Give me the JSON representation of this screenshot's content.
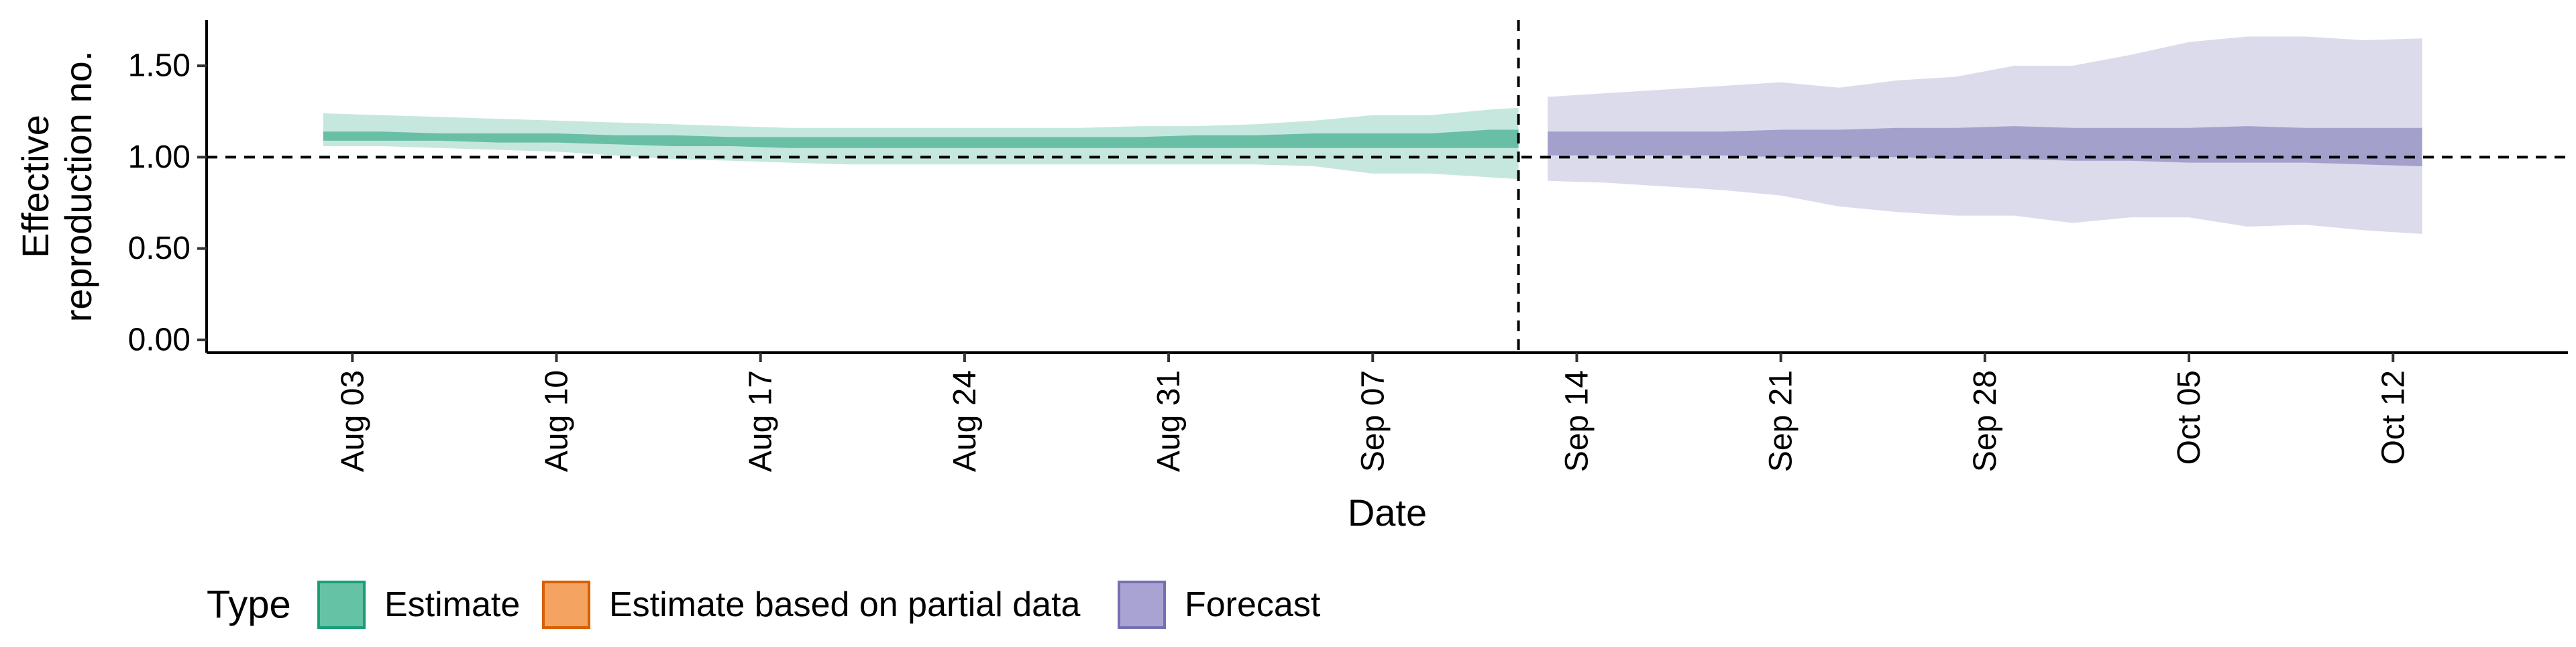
{
  "chart_data": {
    "type": "area",
    "xlabel": "Date",
    "ylabel_lines": [
      "Effective",
      "reproduction no."
    ],
    "ylim": [
      -0.07,
      1.75
    ],
    "yticks": [
      0,
      0.5,
      1,
      1.5
    ],
    "ytick_labels": [
      "0.00",
      "0.50",
      "1.00",
      "1.50"
    ],
    "xlim": [
      "2021-07-29",
      "2021-10-18"
    ],
    "xticks": [
      "2021-08-03",
      "2021-08-10",
      "2021-08-17",
      "2021-08-24",
      "2021-08-31",
      "2021-09-07",
      "2021-09-14",
      "2021-09-21",
      "2021-09-28",
      "2021-10-05",
      "2021-10-12"
    ],
    "xtick_labels": [
      "Aug 03",
      "Aug 10",
      "Aug 17",
      "Aug 24",
      "Aug 31",
      "Sep 07",
      "Sep 14",
      "Sep 21",
      "Sep 28",
      "Oct 05",
      "Oct 12"
    ],
    "reference_hline": 1.0,
    "reference_vline": "2021-09-12",
    "legend": {
      "title": "Type",
      "position": "bottom-left",
      "items": [
        {
          "label": "Estimate",
          "fill": "#66c2a5",
          "stroke": "#1b9e77"
        },
        {
          "label": "Estimate based on partial data",
          "fill": "#f4a460",
          "stroke": "#d95f02"
        },
        {
          "label": "Forecast",
          "fill": "#a9a3d4",
          "stroke": "#7570b3"
        }
      ]
    },
    "series": [
      {
        "name": "Estimate",
        "color": "#1b9e77",
        "x": [
          "2021-08-02",
          "2021-08-04",
          "2021-08-06",
          "2021-08-08",
          "2021-08-10",
          "2021-08-12",
          "2021-08-14",
          "2021-08-16",
          "2021-08-18",
          "2021-08-20",
          "2021-08-22",
          "2021-08-24",
          "2021-08-26",
          "2021-08-28",
          "2021-08-30",
          "2021-09-01",
          "2021-09-03",
          "2021-09-05",
          "2021-09-07",
          "2021-09-09",
          "2021-09-11",
          "2021-09-12"
        ],
        "outer_upper": [
          1.24,
          1.23,
          1.22,
          1.21,
          1.2,
          1.19,
          1.18,
          1.17,
          1.16,
          1.16,
          1.16,
          1.16,
          1.16,
          1.16,
          1.17,
          1.17,
          1.18,
          1.2,
          1.23,
          1.23,
          1.26,
          1.27
        ],
        "inner_upper": [
          1.14,
          1.14,
          1.13,
          1.13,
          1.13,
          1.12,
          1.12,
          1.11,
          1.11,
          1.11,
          1.11,
          1.11,
          1.11,
          1.11,
          1.11,
          1.12,
          1.12,
          1.13,
          1.13,
          1.13,
          1.15,
          1.15
        ],
        "inner_lower": [
          1.09,
          1.09,
          1.09,
          1.08,
          1.08,
          1.07,
          1.06,
          1.06,
          1.05,
          1.05,
          1.05,
          1.05,
          1.05,
          1.05,
          1.05,
          1.05,
          1.05,
          1.05,
          1.05,
          1.05,
          1.05,
          1.05
        ],
        "outer_lower": [
          1.06,
          1.06,
          1.05,
          1.04,
          1.03,
          1.01,
          0.99,
          0.98,
          0.97,
          0.96,
          0.96,
          0.96,
          0.96,
          0.96,
          0.96,
          0.96,
          0.96,
          0.95,
          0.91,
          0.91,
          0.89,
          0.88
        ]
      },
      {
        "name": "Forecast",
        "color": "#7570b3",
        "x": [
          "2021-09-13",
          "2021-09-15",
          "2021-09-17",
          "2021-09-19",
          "2021-09-21",
          "2021-09-23",
          "2021-09-25",
          "2021-09-27",
          "2021-09-29",
          "2021-10-01",
          "2021-10-03",
          "2021-10-05",
          "2021-10-07",
          "2021-10-09",
          "2021-10-11",
          "2021-10-13"
        ],
        "outer_upper": [
          1.33,
          1.35,
          1.37,
          1.39,
          1.41,
          1.38,
          1.42,
          1.44,
          1.5,
          1.5,
          1.56,
          1.63,
          1.66,
          1.66,
          1.64,
          1.65
        ],
        "inner_upper": [
          1.14,
          1.14,
          1.14,
          1.14,
          1.15,
          1.15,
          1.16,
          1.16,
          1.17,
          1.16,
          1.16,
          1.16,
          1.17,
          1.16,
          1.16,
          1.16
        ],
        "inner_lower": [
          1.01,
          1.01,
          1.01,
          1.01,
          1.0,
          1.0,
          1.0,
          0.99,
          0.99,
          0.98,
          0.98,
          0.97,
          0.97,
          0.97,
          0.96,
          0.95
        ],
        "outer_lower": [
          0.87,
          0.86,
          0.84,
          0.82,
          0.79,
          0.73,
          0.7,
          0.68,
          0.68,
          0.64,
          0.67,
          0.67,
          0.62,
          0.63,
          0.6,
          0.58
        ]
      }
    ]
  }
}
